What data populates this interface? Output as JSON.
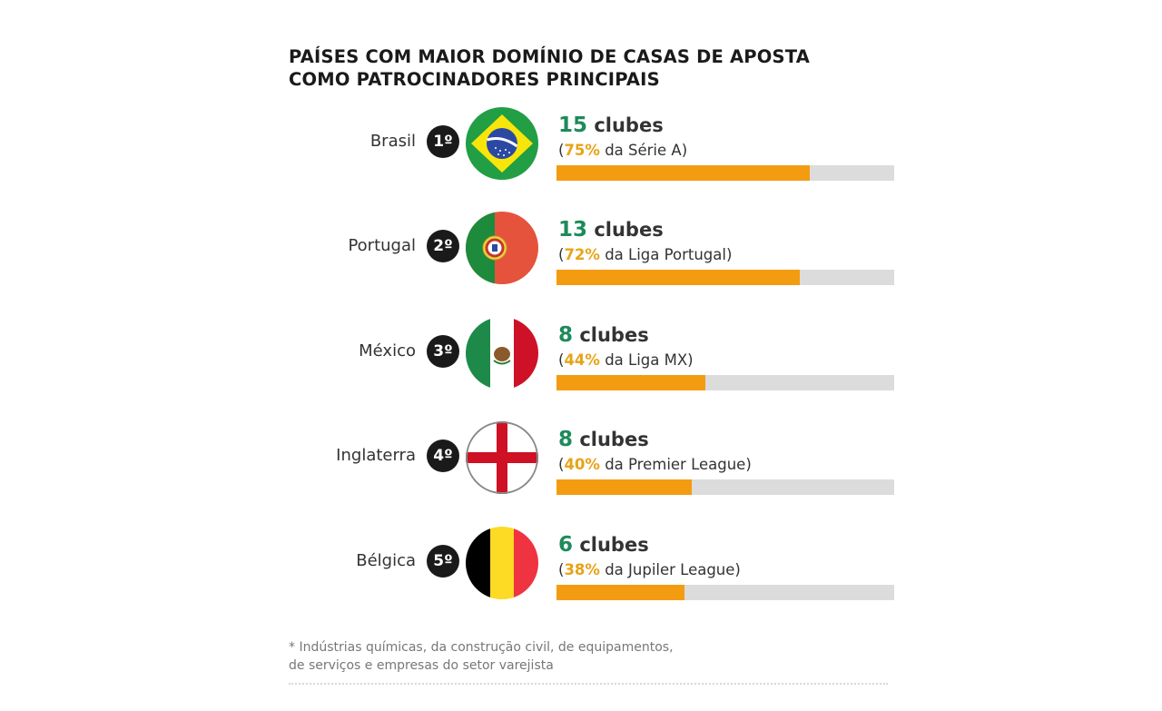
{
  "title": {
    "line1": "PAÍSES COM MAIOR DOMÍNIO DE CASAS DE APOSTA",
    "line2": "COMO PATROCINADORES PRINCIPAIS"
  },
  "colors": {
    "club_number": "#1e8a5a",
    "percent": "#e8a317",
    "bar_fill": "#f39c12",
    "bar_track": "#dcdcdc",
    "rank_badge": "#1a1a1a"
  },
  "chart_data": {
    "type": "bar",
    "orientation": "horizontal",
    "title": "PAÍSES COM MAIOR DOMÍNIO DE CASAS DE APOSTA COMO PATROCINADORES PRINCIPAIS",
    "categories": [
      "Brasil",
      "Portugal",
      "México",
      "Inglaterra",
      "Bélgica"
    ],
    "values": [
      75,
      72,
      44,
      40,
      38
    ],
    "value_unit": "% dos clubes da liga",
    "xlim": [
      0,
      100
    ],
    "rows": [
      {
        "country": "Brasil",
        "rank": "1º",
        "flag": "brazil-flag-icon",
        "clubs_num": "15",
        "clubs_label": "clubes",
        "pct_text": "75%",
        "pct_value": 75,
        "league": "da Série A)"
      },
      {
        "country": "Portugal",
        "rank": "2º",
        "flag": "portugal-flag-icon",
        "clubs_num": "13",
        "clubs_label": "clubes",
        "pct_text": "72%",
        "pct_value": 72,
        "league": "da Liga Portugal)"
      },
      {
        "country": "México",
        "rank": "3º",
        "flag": "mexico-flag-icon",
        "clubs_num": "8",
        "clubs_label": "clubes",
        "pct_text": "44%",
        "pct_value": 44,
        "league": "da Liga MX)"
      },
      {
        "country": "Inglaterra",
        "rank": "4º",
        "flag": "england-flag-icon",
        "clubs_num": "8",
        "clubs_label": "clubes",
        "pct_text": "40%",
        "pct_value": 40,
        "league": "da Premier League)"
      },
      {
        "country": "Bélgica",
        "rank": "5º",
        "flag": "belgium-flag-icon",
        "clubs_num": "6",
        "clubs_label": "clubes",
        "pct_text": "38%",
        "pct_value": 38,
        "league": "da Jupiler League)"
      }
    ]
  },
  "footnote": {
    "line1": "* Indústrias químicas, da construção civil, de equipamentos,",
    "line2": "de serviços e empresas do setor varejista"
  }
}
